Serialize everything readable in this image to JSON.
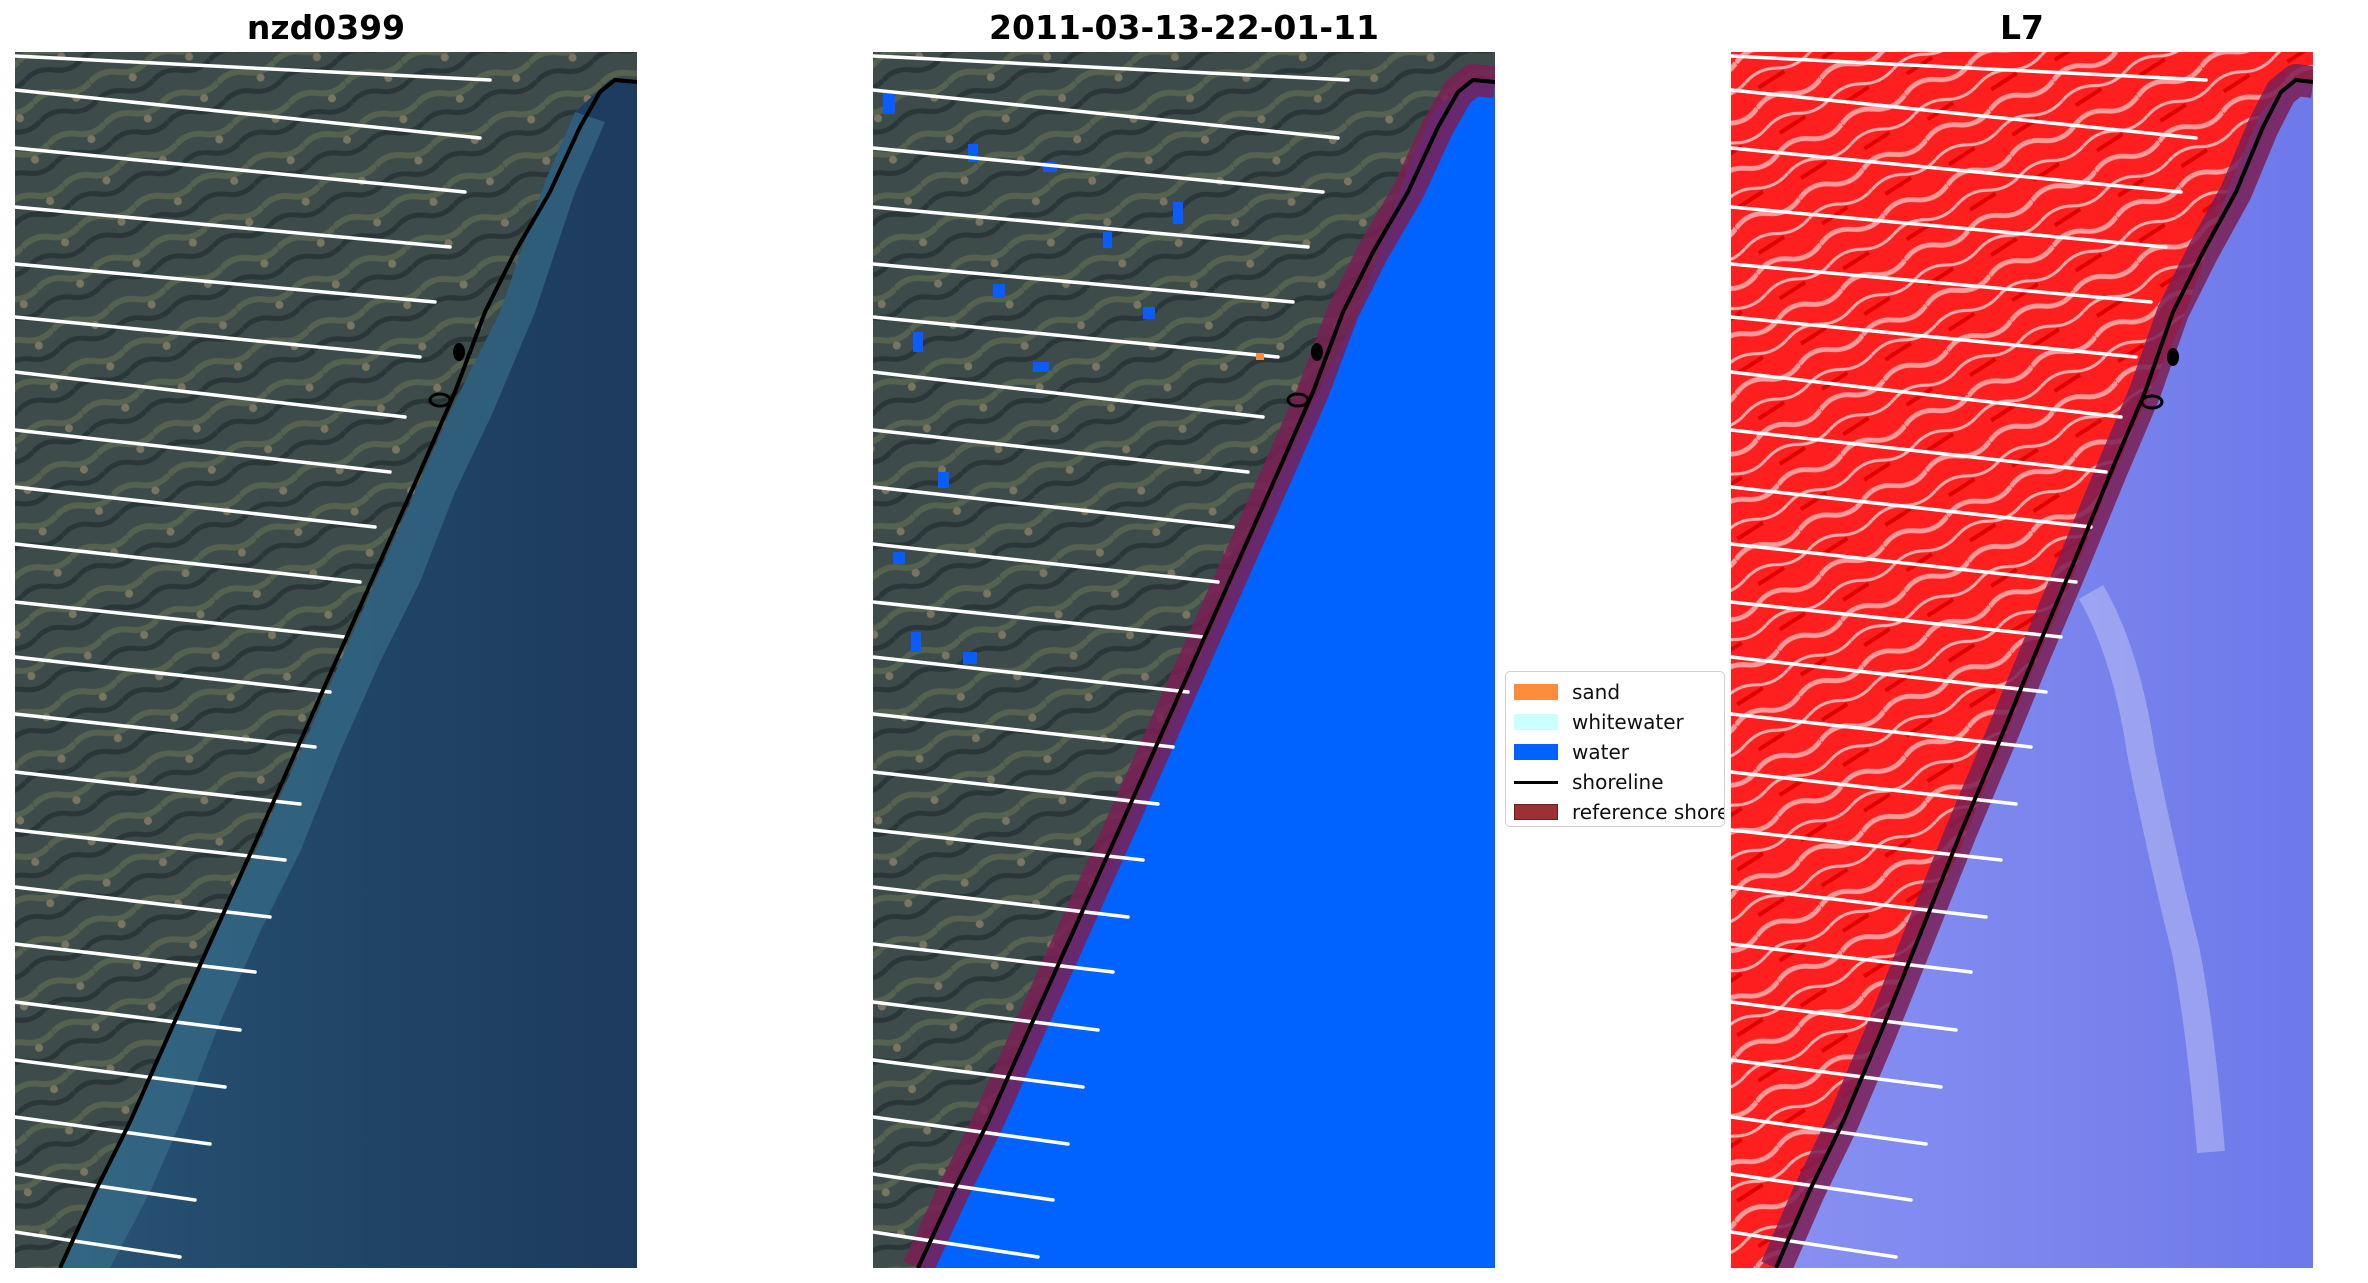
{
  "panels": [
    {
      "title": "nzd0399",
      "type": "rgb"
    },
    {
      "title": "2011-03-13-22-01-11",
      "type": "classification"
    },
    {
      "title": "L7",
      "type": "index"
    }
  ],
  "legend": {
    "items": [
      {
        "label": "sand",
        "color": "#ff8c3a",
        "kind": "patch"
      },
      {
        "label": "whitewater",
        "color": "#ccffff",
        "kind": "patch"
      },
      {
        "label": "water",
        "color": "#0062ff",
        "kind": "patch"
      },
      {
        "label": "shoreline",
        "color": "#000000",
        "kind": "line"
      },
      {
        "label": "reference shoreline buffer",
        "color": "#9b3035",
        "kind": "patch"
      }
    ]
  },
  "colors": {
    "land": "#3d4d4e",
    "ocean": "#1f4066",
    "class_water": "#0062ff",
    "buffer": "#7a1f55",
    "index_land": "#ff2020",
    "index_water": "#7a86ee",
    "transect": "#ffffff",
    "shoreline": "#000000"
  }
}
